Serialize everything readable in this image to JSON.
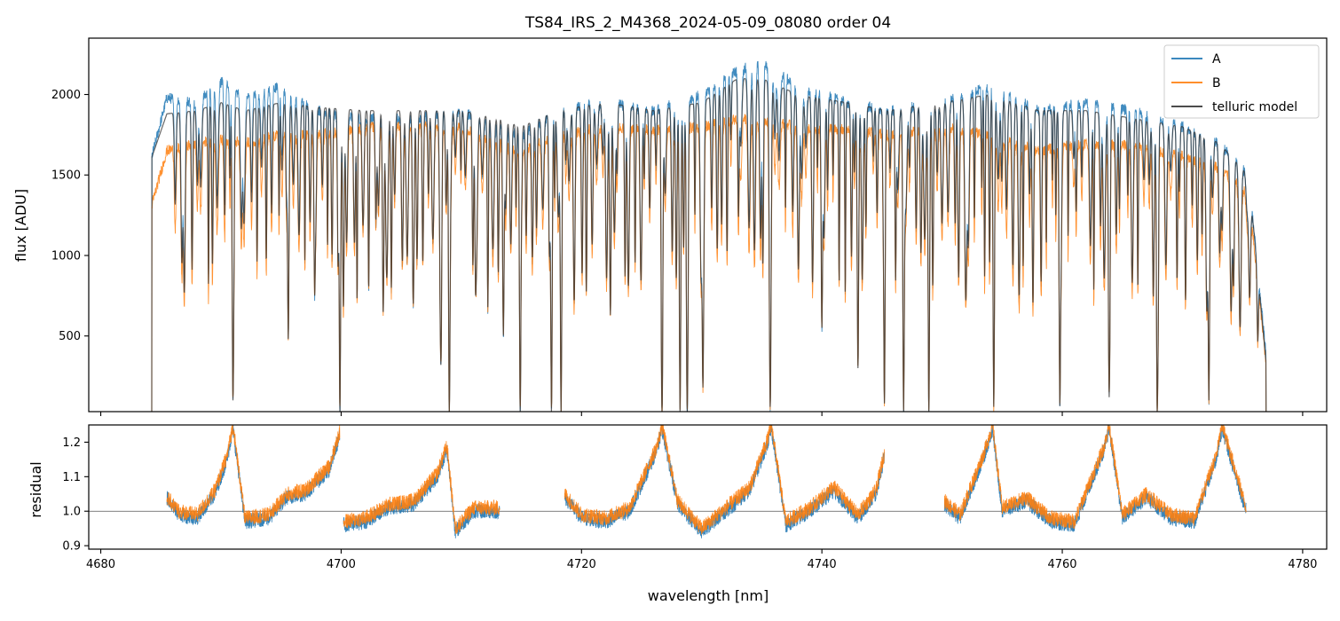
{
  "chart_data": [
    {
      "type": "line",
      "title": "TS84_IRS_2_M4368_2024-05-09_08080  order 04",
      "xlabel": "",
      "ylabel": "flux [ADU]",
      "xlim": [
        4679,
        4782
      ],
      "ylim": [
        30,
        2350
      ],
      "xticks": [
        4680,
        4700,
        4720,
        4740,
        4760,
        4780
      ],
      "yticks": [
        500,
        1000,
        1500,
        2000
      ],
      "ytick_labels": [
        "500",
        "1000",
        "1500",
        "2000"
      ],
      "legend_position": "top-right",
      "series": [
        {
          "name": "A",
          "color": "#1f77b4",
          "anchors_x": [
            4684.2,
            4685.5,
            4688,
            4690,
            4692,
            4695,
            4698,
            4702,
            4706,
            4710,
            4713,
            4715,
            4718,
            4722,
            4726,
            4730,
            4733,
            4735,
            4738,
            4742,
            4745.5,
            4750,
            4754,
            4758,
            4762,
            4766,
            4770,
            4773,
            4775.5,
            4777
          ],
          "anchors_y": [
            1600,
            1980,
            1950,
            2080,
            1980,
            2050,
            1900,
            1850,
            1850,
            1900,
            1800,
            1750,
            1900,
            1950,
            1900,
            2000,
            2150,
            2200,
            2050,
            1950,
            1900,
            1950,
            2050,
            1900,
            1950,
            1900,
            1800,
            1700,
            1500,
            350
          ]
        },
        {
          "name": "B",
          "color": "#ff7f0e",
          "anchors_x": [
            4684.2,
            4685.5,
            4688,
            4690,
            4692,
            4695,
            4698,
            4702,
            4706,
            4710,
            4713,
            4715,
            4718,
            4722,
            4726,
            4730,
            4733,
            4735,
            4738,
            4742,
            4745.5,
            4750,
            4754,
            4758,
            4762,
            4766,
            4770,
            4773,
            4775.5,
            4777
          ],
          "anchors_y": [
            1300,
            1650,
            1700,
            1720,
            1700,
            1750,
            1750,
            1800,
            1800,
            1800,
            1700,
            1650,
            1750,
            1800,
            1780,
            1800,
            1850,
            1850,
            1800,
            1780,
            1750,
            1800,
            1750,
            1650,
            1700,
            1680,
            1620,
            1550,
            1380,
            300
          ]
        },
        {
          "name": "telluric model",
          "color": "#333333",
          "anchors_x": [
            4684.2,
            4685.5,
            4688,
            4690,
            4692,
            4695,
            4698,
            4702,
            4706,
            4710,
            4713,
            4715,
            4718,
            4722,
            4726,
            4730,
            4733,
            4735,
            4738,
            4742,
            4745.5,
            4750,
            4754,
            4758,
            4762,
            4766,
            4770,
            4773,
            4775.5,
            4777
          ],
          "anchors_y": [
            1600,
            1880,
            1900,
            1950,
            1900,
            1950,
            1920,
            1900,
            1900,
            1900,
            1850,
            1800,
            1900,
            1950,
            1900,
            1950,
            2100,
            2100,
            2000,
            1950,
            1900,
            1950,
            2000,
            1900,
            1900,
            1850,
            1800,
            1700,
            1500,
            300
          ]
        }
      ],
      "absorption_lines": [
        {
          "x": 4691.0,
          "y": 100
        },
        {
          "x": 4695.6,
          "y": 480
        },
        {
          "x": 4697.8,
          "y": 750
        },
        {
          "x": 4699.9,
          "y": 30
        },
        {
          "x": 4703.5,
          "y": 650
        },
        {
          "x": 4706.0,
          "y": 700
        },
        {
          "x": 4708.3,
          "y": 320
        },
        {
          "x": 4709.0,
          "y": 30
        },
        {
          "x": 4711.2,
          "y": 750
        },
        {
          "x": 4713.5,
          "y": 500
        },
        {
          "x": 4714.9,
          "y": 30
        },
        {
          "x": 4717.5,
          "y": 30
        },
        {
          "x": 4718.3,
          "y": 30
        },
        {
          "x": 4722.4,
          "y": 630
        },
        {
          "x": 4726.7,
          "y": 30
        },
        {
          "x": 4728.2,
          "y": 30
        },
        {
          "x": 4728.8,
          "y": 30
        },
        {
          "x": 4730.1,
          "y": 180
        },
        {
          "x": 4735.7,
          "y": 60
        },
        {
          "x": 4740.0,
          "y": 550
        },
        {
          "x": 4743.0,
          "y": 300
        },
        {
          "x": 4745.2,
          "y": 80
        },
        {
          "x": 4746.8,
          "y": 30
        },
        {
          "x": 4748.9,
          "y": 30
        },
        {
          "x": 4754.3,
          "y": 60
        },
        {
          "x": 4759.8,
          "y": 65
        },
        {
          "x": 4763.9,
          "y": 120
        },
        {
          "x": 4767.9,
          "y": 30
        },
        {
          "x": 4772.2,
          "y": 100
        }
      ]
    },
    {
      "type": "line",
      "title": "",
      "xlabel": "wavelength [nm]",
      "ylabel": "residual",
      "xlim": [
        4679,
        4782
      ],
      "ylim": [
        0.89,
        1.25
      ],
      "xticks": [
        4680,
        4700,
        4720,
        4740,
        4760,
        4780
      ],
      "xtick_labels": [
        "4680",
        "4700",
        "4720",
        "4740",
        "4760",
        "4780"
      ],
      "yticks": [
        0.9,
        1.0,
        1.1,
        1.2
      ],
      "ytick_labels": [
        "0.9",
        "1.0",
        "1.1",
        "1.2"
      ],
      "reference_line": 1.0,
      "series": [
        {
          "name": "A residual",
          "color": "#1f77b4",
          "segments": [
            {
              "x": [
                4685.5,
                4686.5,
                4688,
                4689.5,
                4690.5,
                4691.0,
                4692,
                4694,
                4695.5,
                4697,
                4699,
                4699.9
              ],
              "y": [
                1.04,
                0.99,
                0.98,
                1.05,
                1.15,
                1.24,
                0.97,
                0.98,
                1.04,
                1.05,
                1.12,
                1.22
              ]
            },
            {
              "x": [
                4700.2,
                4702,
                4704,
                4706,
                4708,
                4708.8,
                4709.5,
                4711,
                4713.2
              ],
              "y": [
                0.96,
                0.97,
                1.01,
                1.02,
                1.1,
                1.18,
                0.94,
                1.0,
                1.0
              ]
            },
            {
              "x": [
                4718.6,
                4720,
                4722,
                4724,
                4726.3,
                4726.7,
                4728,
                4730,
                4732,
                4734,
                4735.5,
                4735.8,
                4737,
                4739,
                4741,
                4743,
                4744.5,
                4745.2
              ],
              "y": [
                1.04,
                0.98,
                0.97,
                1.0,
                1.18,
                1.24,
                1.02,
                0.94,
                1.0,
                1.06,
                1.2,
                1.24,
                0.96,
                1.0,
                1.06,
                0.98,
                1.05,
                1.16
              ]
            },
            {
              "x": [
                4750.2,
                4751.5,
                4753.5,
                4754.2,
                4755,
                4757,
                4759,
                4761,
                4763.5,
                4763.9,
                4765,
                4767,
                4769,
                4771,
                4772.8,
                4773.3,
                4775.3
              ],
              "y": [
                1.02,
                0.98,
                1.16,
                1.24,
                1.0,
                1.03,
                0.97,
                0.96,
                1.18,
                1.24,
                0.98,
                1.04,
                0.98,
                0.97,
                1.15,
                1.24,
                1.0
              ]
            }
          ]
        },
        {
          "name": "B residual",
          "color": "#ff7f0e",
          "segments": [
            {
              "x": [
                4685.5,
                4686.5,
                4688,
                4689.5,
                4690.5,
                4691.0,
                4692,
                4694,
                4695.5,
                4697,
                4699,
                4699.9
              ],
              "y": [
                1.04,
                1.0,
                0.99,
                1.06,
                1.16,
                1.25,
                0.98,
                0.99,
                1.05,
                1.06,
                1.13,
                1.23
              ]
            },
            {
              "x": [
                4700.2,
                4702,
                4704,
                4706,
                4708,
                4708.8,
                4709.5,
                4711,
                4713.2
              ],
              "y": [
                0.97,
                0.98,
                1.02,
                1.03,
                1.11,
                1.19,
                0.95,
                1.01,
                1.01
              ]
            },
            {
              "x": [
                4718.6,
                4720,
                4722,
                4724,
                4726.3,
                4726.7,
                4728,
                4730,
                4732,
                4734,
                4735.5,
                4735.8,
                4737,
                4739,
                4741,
                4743,
                4744.5,
                4745.2
              ],
              "y": [
                1.05,
                0.99,
                0.98,
                1.01,
                1.19,
                1.25,
                1.03,
                0.95,
                1.01,
                1.07,
                1.21,
                1.25,
                0.97,
                1.01,
                1.07,
                0.99,
                1.06,
                1.17
              ]
            },
            {
              "x": [
                4750.2,
                4751.5,
                4753.5,
                4754.2,
                4755,
                4757,
                4759,
                4761,
                4763.5,
                4763.9,
                4765,
                4767,
                4769,
                4771,
                4772.8,
                4773.3,
                4775.3
              ],
              "y": [
                1.03,
                0.99,
                1.17,
                1.25,
                1.01,
                1.04,
                0.98,
                0.97,
                1.19,
                1.25,
                0.99,
                1.05,
                0.99,
                0.98,
                1.16,
                1.25,
                1.01
              ]
            }
          ]
        }
      ]
    }
  ]
}
